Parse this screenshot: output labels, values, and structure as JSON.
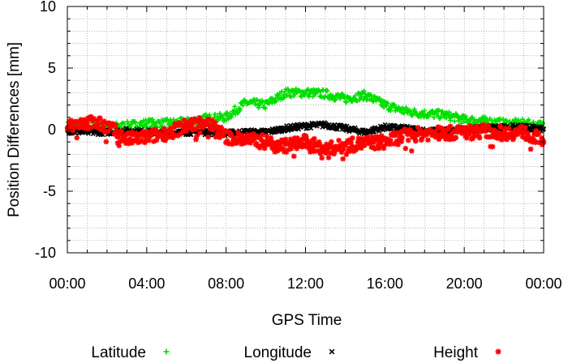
{
  "chart_data": {
    "type": "scatter",
    "xlabel": "GPS Time",
    "ylabel": "Position Differences [mm]",
    "xlim": [
      0,
      24
    ],
    "ylim": [
      -10,
      10
    ],
    "x_ticks": [
      {
        "v": 0,
        "label": "00:00"
      },
      {
        "v": 4,
        "label": "04:00"
      },
      {
        "v": 8,
        "label": "08:00"
      },
      {
        "v": 12,
        "label": "12:00"
      },
      {
        "v": 16,
        "label": "16:00"
      },
      {
        "v": 20,
        "label": "20:00"
      },
      {
        "v": 24,
        "label": "00:00"
      }
    ],
    "y_ticks": [
      {
        "v": -10,
        "label": "-10"
      },
      {
        "v": -5,
        "label": "-5"
      },
      {
        "v": 0,
        "label": "0"
      },
      {
        "v": 5,
        "label": "5"
      },
      {
        "v": 10,
        "label": "10"
      }
    ],
    "grid": true,
    "legend_position": "bottom",
    "series": [
      {
        "name": "Latitude",
        "marker": "+",
        "color": "#00e000",
        "x": [
          0,
          1,
          2,
          3,
          4,
          5,
          6,
          7,
          8,
          9,
          10,
          11,
          12,
          13,
          14,
          15,
          16,
          17,
          18,
          19,
          20,
          21,
          22,
          23,
          24
        ],
        "y": [
          0.3,
          0.3,
          0.2,
          0.3,
          0.5,
          0.5,
          0.6,
          0.9,
          1.0,
          2.2,
          2.0,
          3.0,
          3.0,
          2.9,
          2.5,
          2.8,
          2.0,
          1.5,
          1.3,
          1.2,
          0.8,
          0.7,
          0.5,
          0.5,
          0.3
        ]
      },
      {
        "name": "Longitude",
        "marker": "×",
        "color": "#000000",
        "x": [
          0,
          1,
          2,
          3,
          4,
          5,
          6,
          7,
          8,
          9,
          10,
          11,
          12,
          13,
          14,
          15,
          16,
          17,
          18,
          19,
          20,
          21,
          22,
          23,
          24
        ],
        "y": [
          -0.1,
          -0.2,
          -0.2,
          -0.1,
          -0.2,
          -0.3,
          -0.2,
          -0.2,
          -0.3,
          -0.2,
          -0.2,
          0.1,
          0.3,
          0.4,
          0.1,
          -0.2,
          0.2,
          0.1,
          -0.1,
          -0.1,
          0.0,
          0.1,
          0.2,
          0.2,
          0.0
        ]
      },
      {
        "name": "Height",
        "marker": "✱",
        "color": "#ff0000",
        "x": [
          0,
          1,
          2,
          3,
          4,
          5,
          6,
          7,
          8,
          9,
          10,
          11,
          12,
          13,
          14,
          15,
          16,
          17,
          18,
          19,
          20,
          21,
          22,
          23,
          24
        ],
        "y": [
          0.4,
          0.6,
          0.3,
          -0.8,
          -0.6,
          -0.3,
          0.3,
          0.7,
          -0.6,
          -0.8,
          -1.0,
          -1.3,
          -1.0,
          -1.6,
          -1.3,
          -1.1,
          -1.0,
          -0.5,
          -0.3,
          -0.3,
          -0.2,
          -0.1,
          -0.3,
          -0.2,
          -0.9
        ]
      }
    ]
  }
}
